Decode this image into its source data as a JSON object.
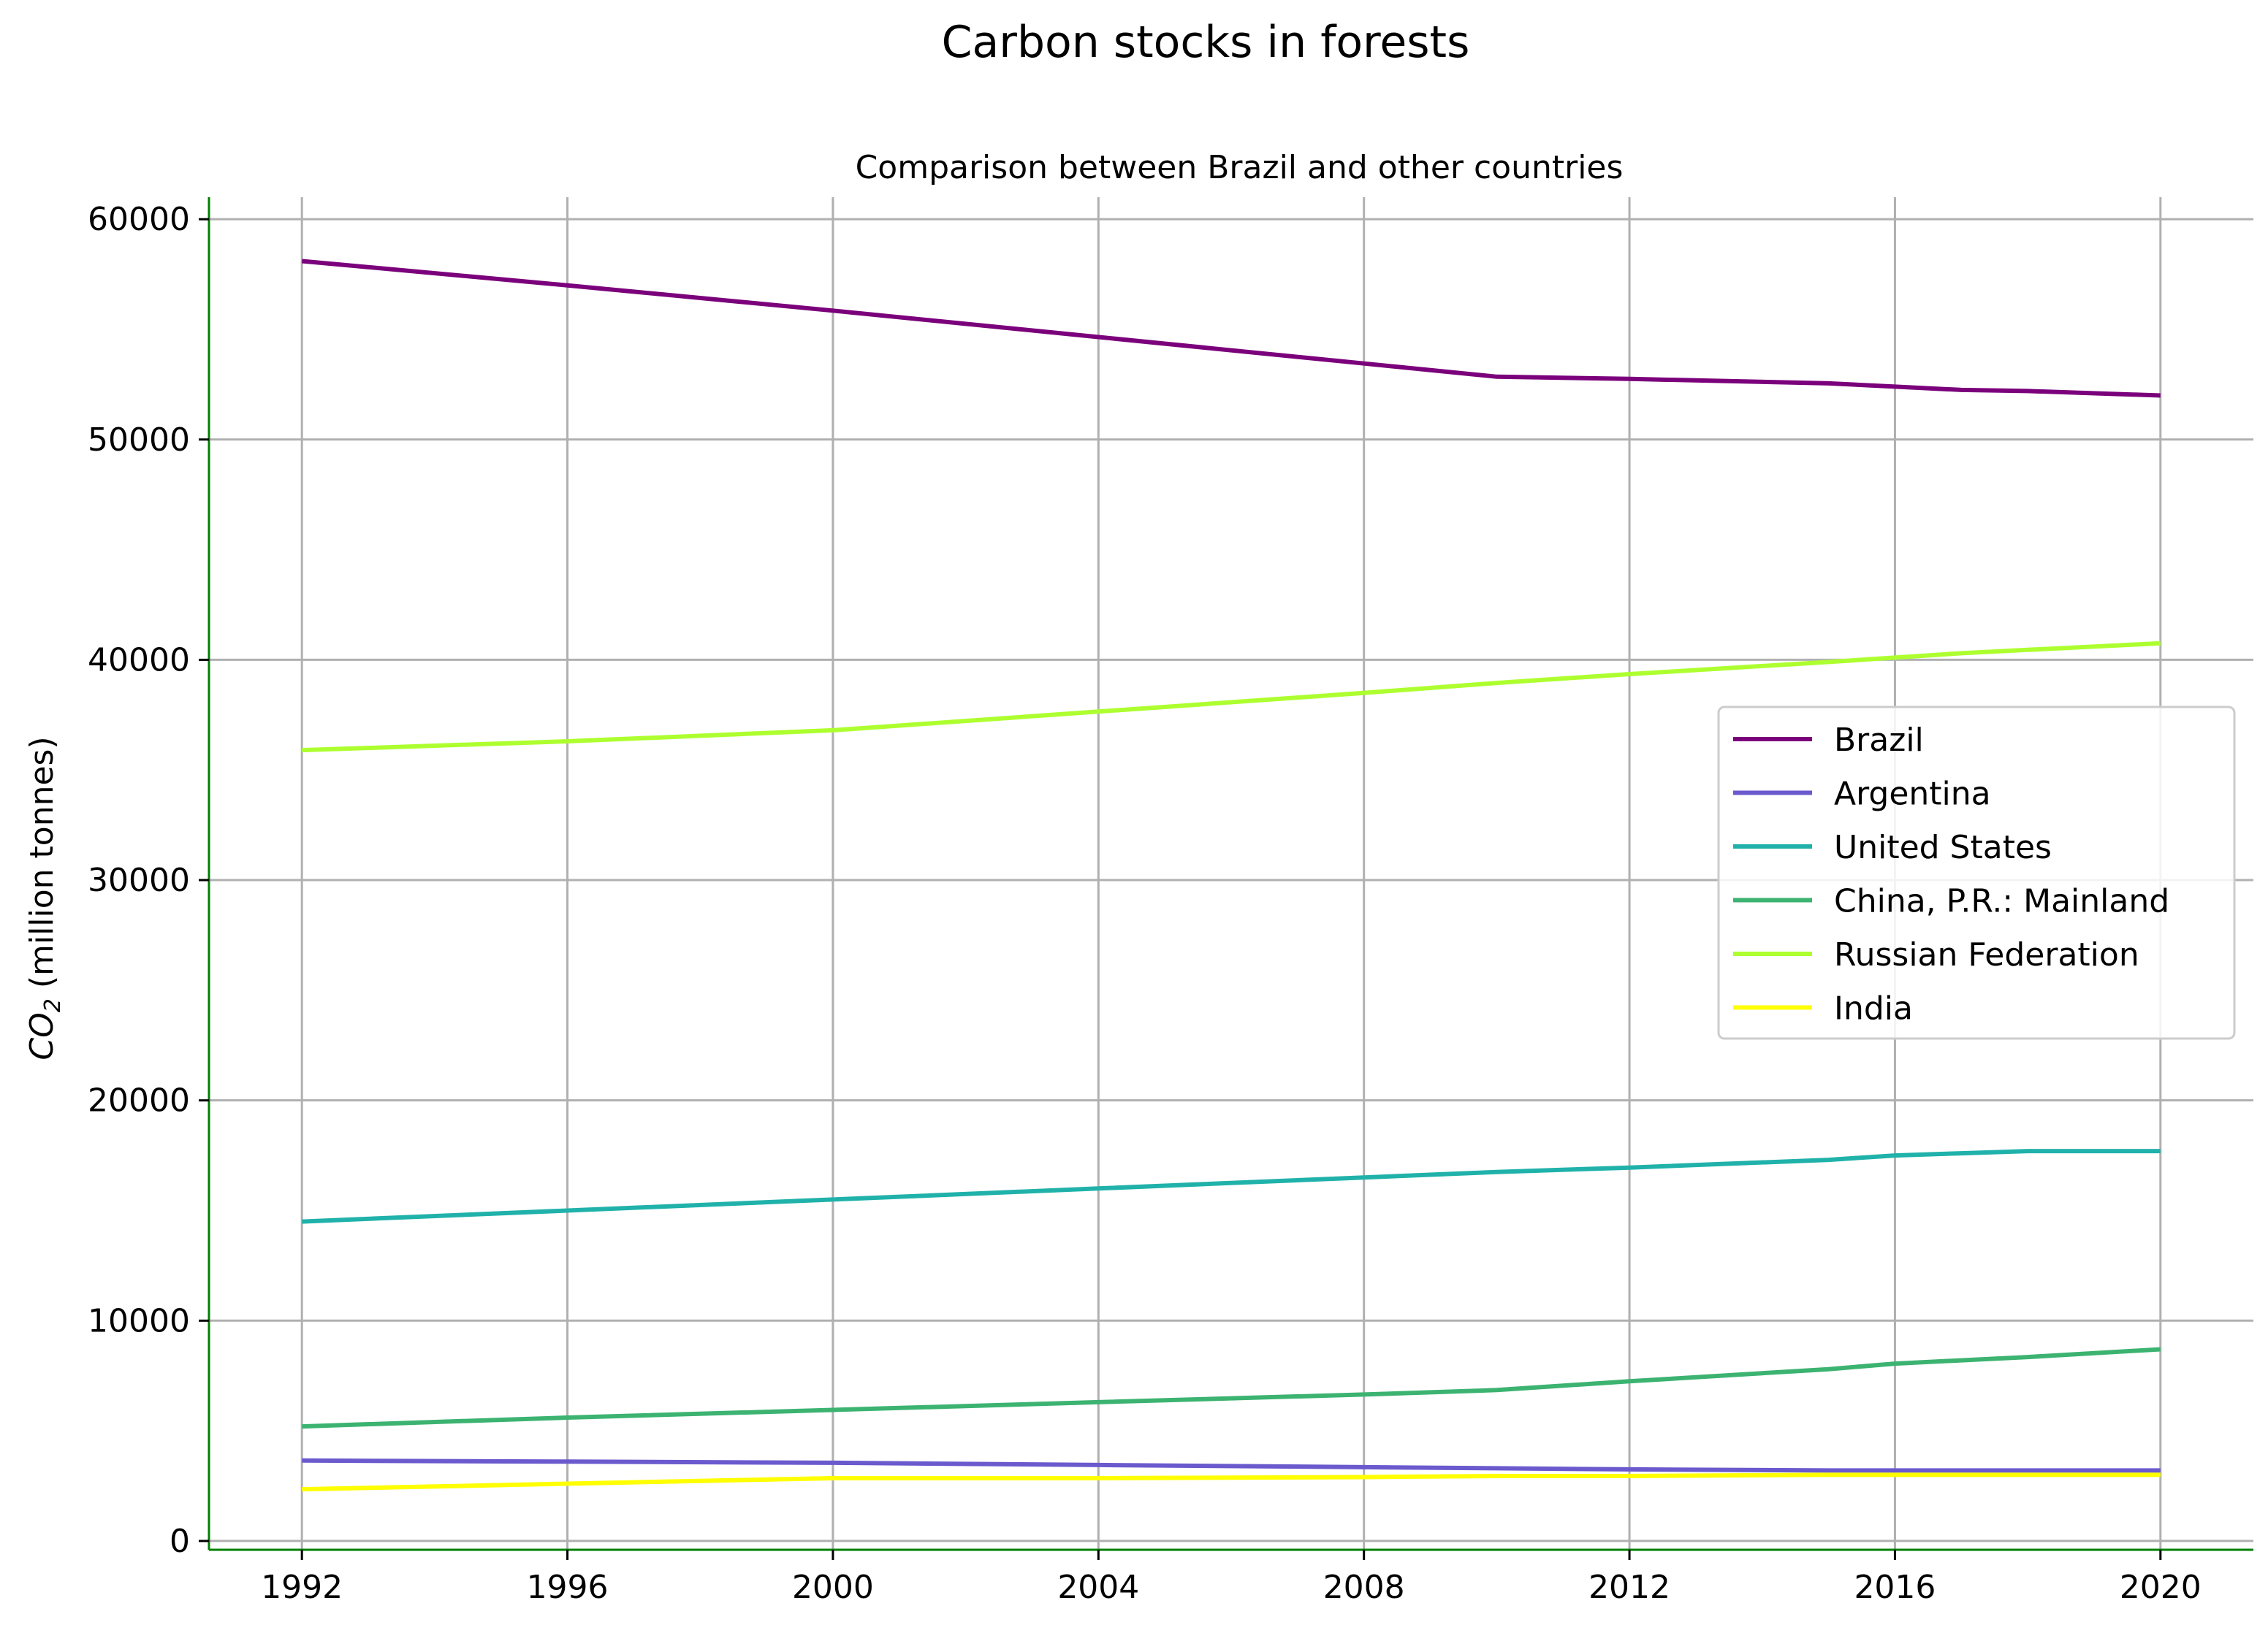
{
  "colors": {
    "spine": "#008000",
    "grid": "#b0b0b0",
    "background": "#ffffff"
  },
  "chart_data": {
    "type": "line",
    "title": "Carbon stocks in forests",
    "subtitle": "Comparison between Brazil and other countries",
    "xlabel": "",
    "ylabel": "CO",
    "ylabel_subscript": "2",
    "ylabel_suffix": " (million tonnes)",
    "xlim": [
      1990.6,
      2021.4
    ],
    "ylim": [
      -400,
      61000
    ],
    "xticks": [
      1992,
      1996,
      2000,
      2004,
      2008,
      2012,
      2016,
      2020
    ],
    "yticks": [
      0,
      10000,
      20000,
      30000,
      40000,
      50000,
      60000
    ],
    "grid": true,
    "legend_position": "center-right",
    "x": [
      1992,
      1996,
      2000,
      2004,
      2008,
      2010,
      2012,
      2015,
      2016,
      2017,
      2018,
      2020
    ],
    "series": [
      {
        "name": "Brazil",
        "color": "#7b007b",
        "values": [
          58100,
          57000,
          55850,
          54650,
          53450,
          52850,
          52750,
          52550,
          52400,
          52250,
          52200,
          52000
        ]
      },
      {
        "name": "Argentina",
        "color": "#6a5acd",
        "values": [
          3650,
          3600,
          3550,
          3450,
          3350,
          3300,
          3250,
          3200,
          3200,
          3200,
          3200,
          3200
        ]
      },
      {
        "name": "United States",
        "color": "#20b2aa",
        "values": [
          14500,
          15000,
          15500,
          16000,
          16500,
          16750,
          16950,
          17300,
          17500,
          17600,
          17700,
          17700
        ]
      },
      {
        "name": "China, P.R.: Mainland",
        "color": "#3cb371",
        "values": [
          5200,
          5600,
          5950,
          6300,
          6650,
          6850,
          7250,
          7800,
          8050,
          8200,
          8350,
          8700
        ]
      },
      {
        "name": "Russian Federation",
        "color": "#adff2f",
        "values": [
          35900,
          36300,
          36800,
          37650,
          38500,
          38950,
          39350,
          39900,
          40100,
          40300,
          40450,
          40750
        ]
      },
      {
        "name": "India",
        "color": "#ffff00",
        "values": [
          2350,
          2600,
          2850,
          2850,
          2900,
          2950,
          2950,
          3000,
          3000,
          3000,
          3000,
          3000
        ]
      }
    ]
  }
}
